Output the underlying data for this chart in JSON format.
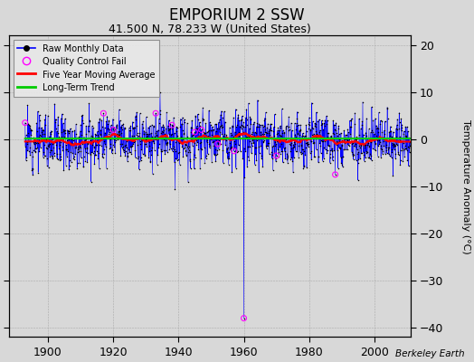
{
  "title": "EMPORIUM 2 SSW",
  "subtitle": "41.500 N, 78.233 W (United States)",
  "ylabel": "Temperature Anomaly (°C)",
  "xlabel_credit": "Berkeley Earth",
  "xlim": [
    1888,
    2011
  ],
  "ylim": [
    -42,
    22
  ],
  "yticks": [
    -40,
    -30,
    -20,
    -10,
    0,
    10,
    20
  ],
  "xticks": [
    1900,
    1920,
    1940,
    1960,
    1980,
    2000
  ],
  "background_color": "#d8d8d8",
  "plot_bg_color": "#d8d8d8",
  "raw_line_color": "#0000ff",
  "raw_marker_color": "#000000",
  "qc_fail_color": "#ff00ff",
  "moving_avg_color": "#ff0000",
  "trend_color": "#00cc00",
  "seed": 12,
  "year_start": 1893,
  "year_end": 2010,
  "outlier1_year": 1960,
  "outlier1_value": -38,
  "outlier2_year": 1988,
  "outlier2_value": -7.5,
  "qc_years": [
    1893,
    1917,
    1920,
    1933,
    1938,
    1945,
    1947,
    1952,
    1957,
    1960,
    1970,
    1988
  ],
  "qc_values": [
    3.5,
    5.5,
    2.0,
    5.5,
    3.0,
    1.5,
    2.0,
    -1.0,
    -2.5,
    -38,
    -3.5,
    -7.5
  ]
}
